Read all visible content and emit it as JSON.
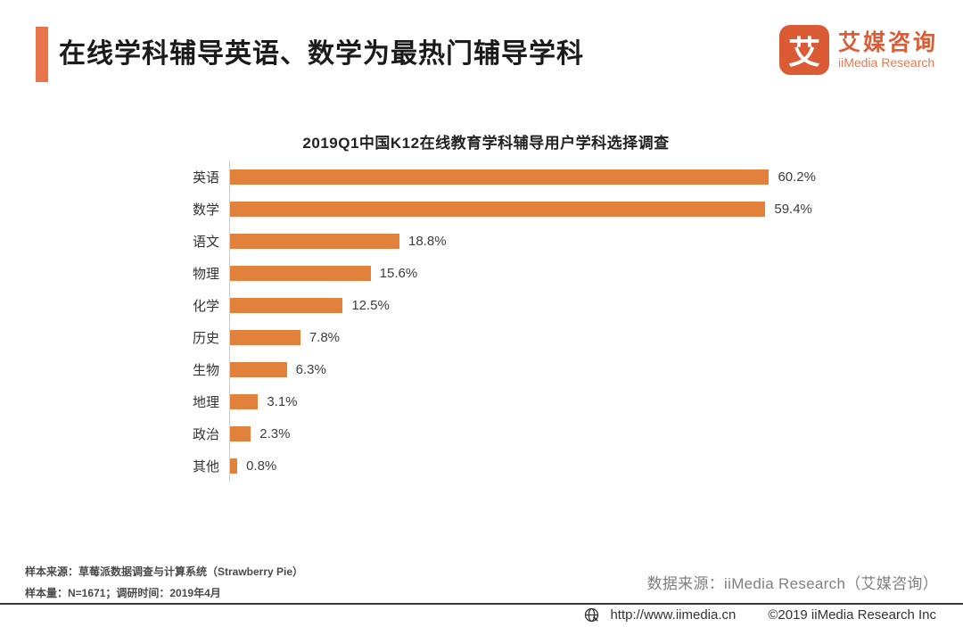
{
  "header": {
    "title": "在线学科辅导英语、数学为最热门辅导学科",
    "logo": {
      "glyph": "艾",
      "name_cn": "艾媒咨询",
      "name_en": "iiMedia Research"
    }
  },
  "chart_data": {
    "type": "bar",
    "orientation": "horizontal",
    "title": "2019Q1中国K12在线教育学科辅导用户学科选择调查",
    "categories": [
      "英语",
      "数学",
      "语文",
      "物理",
      "化学",
      "历史",
      "生物",
      "地理",
      "政治",
      "其他"
    ],
    "values": [
      60.2,
      59.4,
      18.8,
      15.6,
      12.5,
      7.8,
      6.3,
      3.1,
      2.3,
      0.8
    ],
    "value_labels": [
      "60.2%",
      "59.4%",
      "18.8%",
      "15.6%",
      "12.5%",
      "7.8%",
      "6.3%",
      "3.1%",
      "2.3%",
      "0.8%"
    ],
    "xlim": [
      0,
      65
    ],
    "bar_color": "#E2813C",
    "grid": false,
    "legend": false,
    "value_label_position": "end-of-bar"
  },
  "footnotes": {
    "sample_source": "样本来源：草莓派数据调查与计算系统（Strawberry Pie）",
    "sample_size": "样本量：N=1671；调研时间：2019年4月",
    "data_source": "数据来源：iiMedia Research（艾媒咨询）"
  },
  "footer": {
    "url": "http://www.iimedia.cn",
    "copyright": "©2019  iiMedia Research Inc"
  },
  "colors": {
    "accent_bar": "#E8744A",
    "logo_orange": "#DB5B35",
    "bar_orange": "#E2813C",
    "axis_line": "#cccccc",
    "footer_line": "#3b3b3b"
  }
}
